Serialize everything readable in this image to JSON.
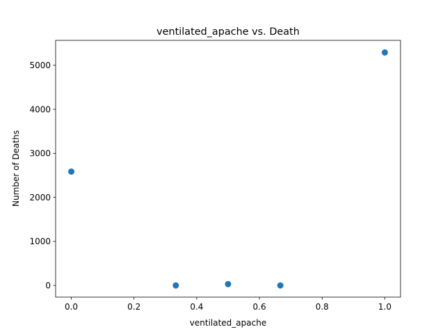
{
  "chart_data": {
    "type": "scatter",
    "title": "ventilated_apache vs. Death",
    "xlabel": "ventilated_apache",
    "ylabel": "Number of Deaths",
    "xlim": [
      -0.05,
      1.05
    ],
    "ylim": [
      -265,
      5565
    ],
    "xticks": [
      0.0,
      0.2,
      0.4,
      0.6,
      0.8,
      1.0
    ],
    "xtick_labels": [
      "0.0",
      "0.2",
      "0.4",
      "0.6",
      "0.8",
      "1.0"
    ],
    "yticks": [
      0,
      1000,
      2000,
      3000,
      4000,
      5000
    ],
    "ytick_labels": [
      "0",
      "1000",
      "2000",
      "3000",
      "4000",
      "5000"
    ],
    "grid": false,
    "marker_color": "#1f77b4",
    "points": [
      {
        "x": 0.0,
        "y": 2585
      },
      {
        "x": 0.3333,
        "y": 0
      },
      {
        "x": 0.5,
        "y": 30
      },
      {
        "x": 0.6667,
        "y": 0
      },
      {
        "x": 1.0,
        "y": 5290
      }
    ]
  }
}
